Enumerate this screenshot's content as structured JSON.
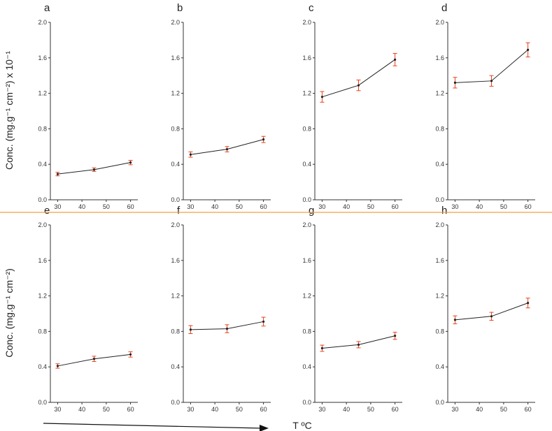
{
  "colors": {
    "line": "#222222",
    "error_bar": "#e8401c",
    "divider": "#f0a040",
    "axis": "#333333"
  },
  "figure": {
    "ylabel_top": "Conc. (mg.g⁻¹ cm⁻²) x 10⁻¹",
    "ylabel_bottom": "Conc. (mg.g⁻¹ cm⁻²)",
    "xlabel": "T ºC"
  },
  "chart_data": [
    {
      "panel": "a",
      "type": "line",
      "x": [
        30,
        45,
        60
      ],
      "y": [
        0.29,
        0.34,
        0.42
      ],
      "err": [
        0.02,
        0.02,
        0.025
      ],
      "xlim": [
        27,
        63
      ],
      "xticks": [
        30,
        40,
        50,
        60
      ],
      "ylim": [
        0,
        2.0
      ],
      "yticks": [
        "0.0",
        "0.4",
        "0.8",
        "1.2",
        "1.6",
        "2.0"
      ]
    },
    {
      "panel": "b",
      "type": "line",
      "x": [
        30,
        45,
        60
      ],
      "y": [
        0.51,
        0.57,
        0.68
      ],
      "err": [
        0.03,
        0.03,
        0.035
      ],
      "xlim": [
        27,
        63
      ],
      "xticks": [
        30,
        40,
        50,
        60
      ],
      "ylim": [
        0,
        2.0
      ],
      "yticks": [
        "0.0",
        "0.4",
        "0.8",
        "1.2",
        "1.6",
        "2.0"
      ]
    },
    {
      "panel": "c",
      "type": "line",
      "x": [
        30,
        45,
        60
      ],
      "y": [
        1.16,
        1.29,
        1.58
      ],
      "err": [
        0.06,
        0.06,
        0.07
      ],
      "xlim": [
        27,
        63
      ],
      "xticks": [
        30,
        40,
        50,
        60
      ],
      "ylim": [
        0,
        2.0
      ],
      "yticks": [
        "0.0",
        "0.4",
        "0.8",
        "1.2",
        "1.6",
        "2.0"
      ]
    },
    {
      "panel": "d",
      "type": "line",
      "x": [
        30,
        45,
        60
      ],
      "y": [
        1.32,
        1.34,
        1.69
      ],
      "err": [
        0.06,
        0.06,
        0.08
      ],
      "xlim": [
        27,
        63
      ],
      "xticks": [
        30,
        40,
        50,
        60
      ],
      "ylim": [
        0,
        2.0
      ],
      "yticks": [
        "0.0",
        "0.4",
        "0.8",
        "1.2",
        "1.6",
        "2.0"
      ]
    },
    {
      "panel": "e",
      "type": "line",
      "x": [
        30,
        45,
        60
      ],
      "y": [
        0.41,
        0.49,
        0.54
      ],
      "err": [
        0.025,
        0.03,
        0.03
      ],
      "xlim": [
        27,
        63
      ],
      "xticks": [
        30,
        40,
        50,
        60
      ],
      "ylim": [
        0,
        2.0
      ],
      "yticks": [
        "0.0",
        "0.4",
        "0.8",
        "1.2",
        "1.6",
        "2.0"
      ]
    },
    {
      "panel": "f",
      "type": "line",
      "x": [
        30,
        45,
        60
      ],
      "y": [
        0.82,
        0.83,
        0.91
      ],
      "err": [
        0.045,
        0.045,
        0.05
      ],
      "xlim": [
        27,
        63
      ],
      "xticks": [
        30,
        40,
        50,
        60
      ],
      "ylim": [
        0,
        2.0
      ],
      "yticks": [
        "0.0",
        "0.4",
        "0.8",
        "1.2",
        "1.6",
        "2.0"
      ]
    },
    {
      "panel": "g",
      "type": "line",
      "x": [
        30,
        45,
        60
      ],
      "y": [
        0.61,
        0.65,
        0.75
      ],
      "err": [
        0.035,
        0.035,
        0.04
      ],
      "xlim": [
        27,
        63
      ],
      "xticks": [
        30,
        40,
        50,
        60
      ],
      "ylim": [
        0,
        2.0
      ],
      "yticks": [
        "0.0",
        "0.4",
        "0.8",
        "1.2",
        "1.6",
        "2.0"
      ]
    },
    {
      "panel": "h",
      "type": "line",
      "x": [
        30,
        45,
        60
      ],
      "y": [
        0.93,
        0.97,
        1.12
      ],
      "err": [
        0.045,
        0.045,
        0.055
      ],
      "xlim": [
        27,
        63
      ],
      "xticks": [
        30,
        40,
        50,
        60
      ],
      "ylim": [
        0,
        2.0
      ],
      "yticks": [
        "0.0",
        "0.4",
        "0.8",
        "1.2",
        "1.6",
        "2.0"
      ]
    }
  ]
}
